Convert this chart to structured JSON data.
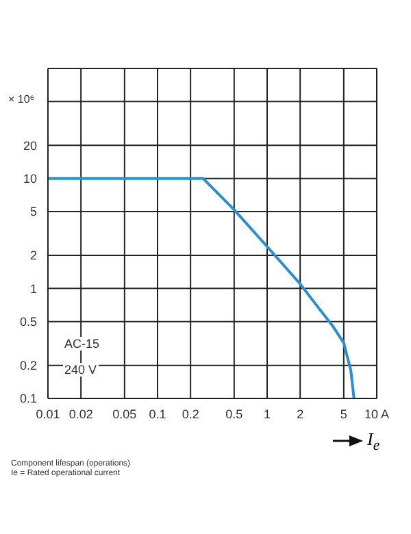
{
  "chart_data": {
    "type": "line",
    "log": "xy",
    "xlabel": "I$_{e}$",
    "ylabel": "× 10⁶",
    "x": [
      0.01,
      0.26,
      0.5,
      1,
      2,
      3,
      4,
      5,
      5.8,
      6.2
    ],
    "series": [
      {
        "color": "#2a8fd0",
        "values": [
          10,
          10,
          5.2,
          2.4,
          1.1,
          0.65,
          0.45,
          0.32,
          0.18,
          0.1
        ]
      }
    ],
    "xlim": [
      0.01,
      10
    ],
    "xticks": [
      0.01,
      0.02,
      0.05,
      0.1,
      0.2,
      0.5,
      1,
      2,
      5,
      {
        "value": 10,
        "label": "10 A"
      }
    ],
    "ylim": [
      0.1,
      100
    ],
    "yticks": [
      0.1,
      0.2,
      0.5,
      1,
      2,
      5,
      10,
      20,
      {
        "value": 50,
        "label": null
      },
      {
        "value": 100,
        "label": null
      }
    ],
    "grid": true,
    "marker": "none",
    "line_style": "solid",
    "annotations": [
      "AC-15",
      "240 V",
      "Component lifespan (operations)",
      "Ie = Rated operational current"
    ]
  }
}
